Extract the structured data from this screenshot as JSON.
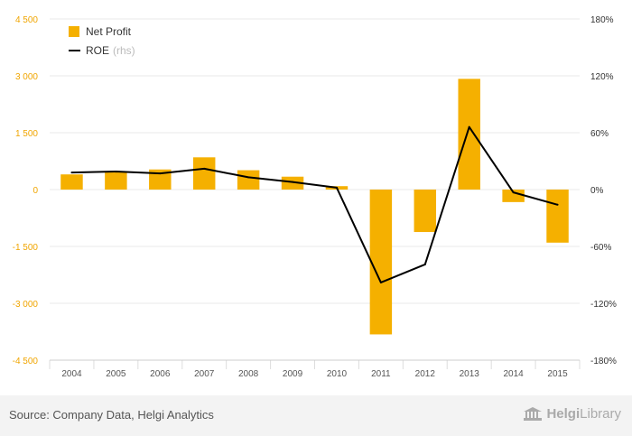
{
  "chart_data": {
    "type": "bar",
    "categories": [
      "2004",
      "2005",
      "2006",
      "2007",
      "2008",
      "2009",
      "2010",
      "2011",
      "2012",
      "2013",
      "2014",
      "2015"
    ],
    "series": [
      {
        "name": "Net Profit",
        "type": "bar",
        "axis": "left",
        "color": "#f5b000",
        "values": [
          400,
          470,
          530,
          850,
          510,
          340,
          90,
          -3820,
          -1120,
          2920,
          -330,
          -1400
        ]
      },
      {
        "name": "ROE",
        "name_suffix": "(rhs)",
        "type": "line",
        "axis": "right",
        "color": "#000000",
        "values": [
          18,
          19,
          17,
          22,
          13,
          8,
          2,
          -98,
          -79,
          66,
          -3,
          -16
        ]
      }
    ],
    "y_left": {
      "ticks": [
        4500,
        3000,
        1500,
        0,
        -1500,
        -3000,
        -4500
      ],
      "tick_labels": [
        "4 500",
        "3 000",
        "1 500",
        "0",
        "-1 500",
        "-3 000",
        "-4 500"
      ],
      "ylim": [
        -4500,
        4500
      ]
    },
    "y_right": {
      "ticks": [
        180,
        120,
        60,
        0,
        -60,
        -120,
        -180
      ],
      "tick_labels": [
        "180%",
        "120%",
        "60%",
        "0%",
        "-60%",
        "-120%",
        "-180%"
      ],
      "ylim": [
        -180,
        180
      ]
    },
    "grid": true,
    "legend_position": "top-left"
  },
  "footer": {
    "source": "Source: Company Data, Helgi Analytics",
    "brand_prefix": "Helgi",
    "brand_suffix": "Library"
  }
}
